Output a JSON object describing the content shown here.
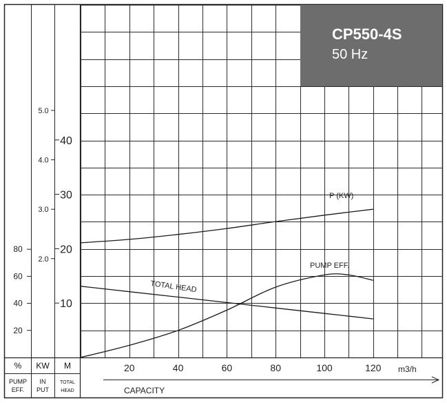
{
  "chart_data": {
    "type": "line",
    "model": "CP550-4S",
    "frequency": "50 Hz",
    "x_unit": "m3/h",
    "x_axis_title": "CAPACITY",
    "xlim": [
      0,
      130
    ],
    "x_ticks": [
      20,
      40,
      60,
      80,
      100,
      120
    ],
    "scales": {
      "head": {
        "unit_label": "M",
        "caption": "TOTAL HEAD",
        "ticks": [
          10,
          20,
          30,
          40
        ],
        "range": [
          0,
          40
        ]
      },
      "power": {
        "unit_label": "KW",
        "caption": "IN PUT",
        "ticks": [
          2.0,
          3.0,
          4.0,
          5.0
        ],
        "range": [
          0,
          5.0
        ]
      },
      "efficiency": {
        "unit_label": "%",
        "caption": "PUMP EFF.",
        "ticks": [
          20,
          40,
          60,
          80
        ],
        "range": [
          0,
          80
        ]
      }
    },
    "series": [
      {
        "name": "TOTAL HEAD",
        "scale": "head",
        "x": [
          0,
          20,
          40,
          60,
          80,
          100,
          120
        ],
        "y": [
          13.1,
          12.1,
          11.1,
          10.1,
          9.1,
          8.1,
          7.1
        ]
      },
      {
        "name": "P (KW)",
        "scale": "power",
        "x": [
          0,
          20,
          40,
          60,
          80,
          100,
          120
        ],
        "y": [
          2.32,
          2.39,
          2.49,
          2.61,
          2.75,
          2.88,
          3.0
        ]
      },
      {
        "name": "PUMP EFF.",
        "scale": "efficiency",
        "x": [
          0,
          20,
          40,
          60,
          80,
          100,
          110,
          120
        ],
        "y": [
          0,
          9,
          20,
          35,
          52,
          61,
          61,
          57
        ]
      }
    ],
    "curve_labels": {
      "head": "TOTAL HEAD",
      "power": "P (KW)",
      "efficiency": "PUMP EFF."
    },
    "grid": true
  },
  "colors": {
    "title_box": "#6d6d6d",
    "title_text": "#ffffff",
    "line": "#1a1a1a",
    "grid": "#2a2a2a"
  }
}
